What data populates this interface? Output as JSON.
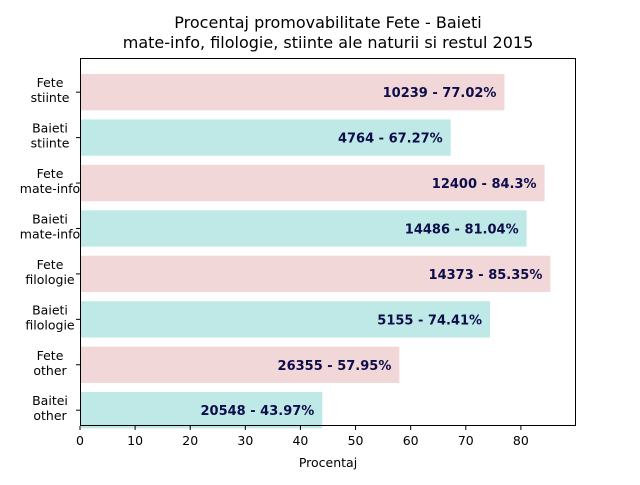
{
  "chart_data": {
    "type": "bar",
    "orientation": "horizontal",
    "title": [
      "Procentaj promovabilitate Fete - Baieti",
      "mate-info, filologie, stiinte ale naturii si restul 2015"
    ],
    "xlabel": "Procentaj",
    "ylabel": "",
    "xlim": [
      0,
      90
    ],
    "xticks": [
      "0",
      "10",
      "20",
      "30",
      "40",
      "50",
      "60",
      "70",
      "80"
    ],
    "grid": false,
    "categories": [
      [
        "Fete",
        "stiinte"
      ],
      [
        "Baieti",
        "stiinte"
      ],
      [
        "Fete",
        "mate-info"
      ],
      [
        "Baieti",
        "mate-info"
      ],
      [
        "Fete",
        "filologie"
      ],
      [
        "Baieti",
        "filologie"
      ],
      [
        "Fete",
        "other"
      ],
      [
        "Baitei",
        "other"
      ]
    ],
    "values": [
      77.02,
      67.27,
      84.3,
      81.04,
      85.35,
      74.41,
      57.95,
      43.97
    ],
    "bar_labels": [
      "10239 - 77.02%",
      "4764 - 67.27%",
      "12400 - 84.3%",
      "14486 - 81.04%",
      "14373 - 85.35%",
      "5155 - 74.41%",
      "26355 - 57.95%",
      "20548 - 43.97%"
    ],
    "colors": [
      "#f2d7d9",
      "#bfe9e7",
      "#f2d7d9",
      "#bfe9e7",
      "#f2d7d9",
      "#bfe9e7",
      "#f2d7d9",
      "#bfe9e7"
    ],
    "label_color": "#0d0d4a"
  }
}
